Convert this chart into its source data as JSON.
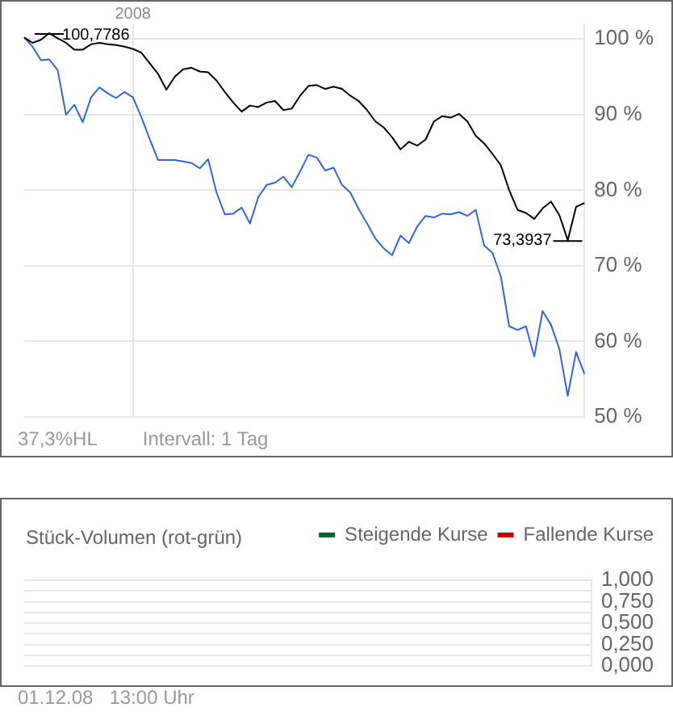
{
  "chart_data": [
    {
      "type": "line",
      "categories": [
        null,
        null,
        null,
        null,
        null,
        null,
        null,
        null,
        null,
        null,
        null,
        null,
        null,
        "2008",
        null,
        null,
        null,
        null,
        null,
        null,
        null,
        null,
        null,
        null,
        null,
        null,
        null,
        null,
        null,
        null,
        null,
        null,
        null,
        null,
        null,
        null,
        null,
        null,
        null,
        null,
        null,
        null,
        null,
        null,
        null,
        null,
        null,
        null,
        null,
        null,
        null,
        null,
        null,
        null,
        null,
        null,
        null,
        null,
        null,
        null,
        null,
        null,
        null,
        null,
        null,
        null,
        null,
        null
      ],
      "ylim": [
        50,
        102
      ],
      "yticks": [
        {
          "value": 50,
          "label": "50 %"
        },
        {
          "value": 60,
          "label": "60 %"
        },
        {
          "value": 70,
          "label": "70 %"
        },
        {
          "value": 80,
          "label": "80 %"
        },
        {
          "value": 90,
          "label": "90 %"
        },
        {
          "value": 100,
          "label": "100 %"
        }
      ],
      "grid": true,
      "legend": false,
      "marker": "none",
      "line_style": "solid",
      "series": [
        {
          "color": "#000000",
          "values": [
            100.2,
            99.5,
            99.9,
            100.7786,
            100.1,
            99.5,
            98.6,
            98.6,
            99.3,
            99.5,
            99.3,
            99.2,
            99.0,
            98.7,
            98.2,
            96.8,
            95.4,
            93.3,
            95.0,
            96.0,
            96.2,
            95.7,
            95.6,
            94.5,
            93.0,
            91.6,
            90.4,
            91.2,
            91.0,
            91.6,
            91.8,
            90.6,
            90.8,
            92.5,
            93.8,
            93.9,
            93.4,
            93.7,
            93.4,
            92.5,
            91.8,
            90.6,
            89.1,
            88.3,
            87.0,
            85.4,
            86.4,
            85.9,
            86.7,
            89.1,
            89.8,
            89.6,
            90.1,
            89.1,
            87.2,
            86.2,
            84.8,
            83.3,
            80.0,
            77.4,
            77.0,
            76.2,
            77.6,
            78.5,
            76.7,
            73.3937,
            77.8,
            78.3
          ]
        },
        {
          "color": "#3366cc",
          "values": [
            100.2,
            99.0,
            97.2,
            97.3,
            95.9,
            90.0,
            91.3,
            89.0,
            92.3,
            93.6,
            92.8,
            92.2,
            93.0,
            92.3,
            89.7,
            86.8,
            84.0,
            84.0,
            84.0,
            83.8,
            83.6,
            82.9,
            84.1,
            79.7,
            76.8,
            76.9,
            77.7,
            75.6,
            79.1,
            80.7,
            81.0,
            81.8,
            80.4,
            82.5,
            84.7,
            84.3,
            82.6,
            83.0,
            80.7,
            79.7,
            77.5,
            75.6,
            73.6,
            72.3,
            71.4,
            74.0,
            73.0,
            75.2,
            76.6,
            76.4,
            76.9,
            76.8,
            77.1,
            76.6,
            77.4,
            72.7,
            71.7,
            68.6,
            62.0,
            61.5,
            62.0,
            58.0,
            64.0,
            62.2,
            59.0,
            52.8,
            58.6,
            55.7
          ]
        }
      ],
      "annotations": [
        "100,7786",
        "73,3937",
        "37,3%HL",
        "Intervall: 1 Tag"
      ]
    },
    {
      "type": "bar",
      "categories": [
        null
      ],
      "title": "Stück-Volumen (rot-grün)",
      "ylim": [
        0,
        1
      ],
      "yticks": [
        {
          "value": 0,
          "label": "0,000"
        },
        {
          "value": 0.125,
          "label": null
        },
        {
          "value": 0.25,
          "label": "0,250"
        },
        {
          "value": 0.375,
          "label": null
        },
        {
          "value": 0.5,
          "label": "0,500"
        },
        {
          "value": 0.625,
          "label": null
        },
        {
          "value": 0.75,
          "label": "0,750"
        },
        {
          "value": 0.875,
          "label": null
        },
        {
          "value": 1,
          "label": "1,000"
        }
      ],
      "grid": true,
      "legend": "top right",
      "series": [
        {
          "name": "Steigende Kurse",
          "color": "#006633",
          "values": [
            0
          ]
        },
        {
          "name": "Fallende Kurse",
          "color": "#cc0000",
          "values": [
            0
          ]
        }
      ],
      "annotations": [
        "01.12.08   13:00 Uhr"
      ]
    }
  ]
}
